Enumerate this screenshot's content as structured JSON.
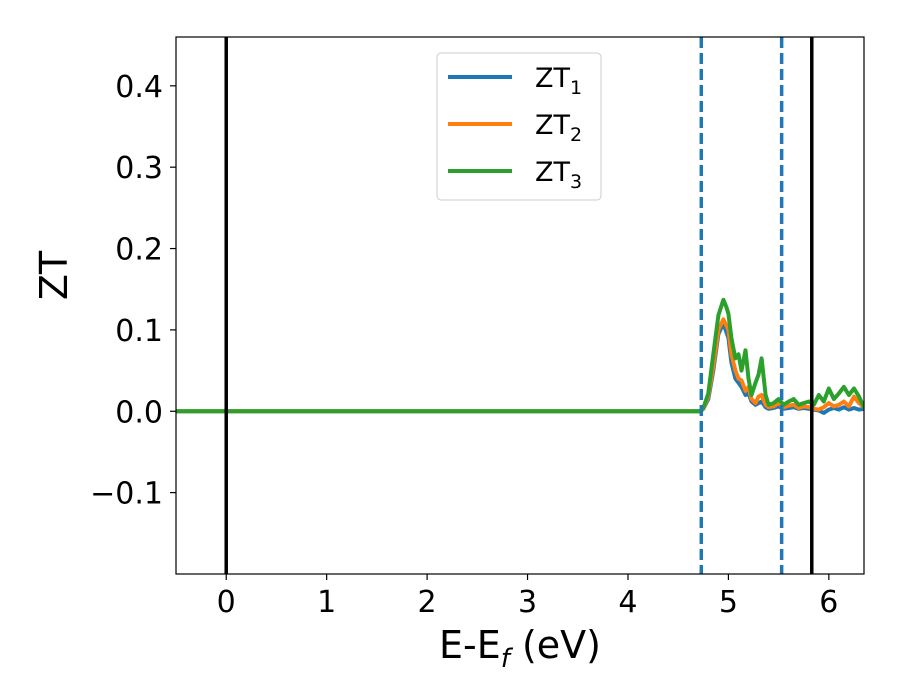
{
  "chart_data": {
    "type": "line",
    "title": "",
    "xlabel": "E-E",
    "xlabel_sub": "f",
    "xlabel_unit": " (eV)",
    "ylabel": "ZT",
    "xlim": [
      -0.5,
      6.35
    ],
    "ylim": [
      -0.2,
      0.46
    ],
    "x_ticks": [
      0,
      1,
      2,
      3,
      4,
      5,
      6
    ],
    "x_tick_labels": [
      "0",
      "1",
      "2",
      "3",
      "4",
      "5",
      "6"
    ],
    "y_ticks": [
      -0.1,
      0.0,
      0.1,
      0.2,
      0.3,
      0.4
    ],
    "y_tick_labels": [
      "−0.1",
      "0.0",
      "0.1",
      "0.2",
      "0.3",
      "0.4"
    ],
    "grid": false,
    "legend_position": "top-center",
    "vertical_lines": [
      {
        "x": 0.0,
        "style": "solid",
        "color": "#000000"
      },
      {
        "x": 5.83,
        "style": "solid",
        "color": "#000000"
      },
      {
        "x": 4.73,
        "style": "dashed",
        "color": "#1f77b4"
      },
      {
        "x": 5.53,
        "style": "dashed",
        "color": "#1f77b4"
      }
    ],
    "series": [
      {
        "name": "ZT",
        "name_sub": "1",
        "color": "#1f77b4",
        "x": [
          -0.5,
          4.72,
          4.75,
          4.8,
          4.85,
          4.9,
          4.95,
          5.0,
          5.03,
          5.07,
          5.1,
          5.13,
          5.17,
          5.2,
          5.23,
          5.27,
          5.3,
          5.33,
          5.37,
          5.4,
          5.45,
          5.5,
          5.55,
          5.6,
          5.65,
          5.7,
          5.75,
          5.8,
          5.85,
          5.9,
          5.95,
          6.0,
          6.05,
          6.1,
          6.15,
          6.2,
          6.25,
          6.3,
          6.35
        ],
        "y": [
          0.0,
          0.0,
          0.003,
          0.015,
          0.05,
          0.095,
          0.108,
          0.09,
          0.06,
          0.04,
          0.035,
          0.03,
          0.02,
          0.022,
          0.012,
          0.008,
          0.01,
          0.012,
          0.005,
          0.003,
          0.004,
          0.006,
          0.003,
          0.004,
          0.005,
          0.003,
          0.004,
          0.003,
          0.002,
          0.001,
          -0.002,
          0.002,
          0.004,
          0.002,
          0.005,
          0.002,
          0.004,
          0.002,
          0.003
        ]
      },
      {
        "name": "ZT",
        "name_sub": "2",
        "color": "#ff7f0e",
        "x": [
          -0.5,
          4.72,
          4.75,
          4.8,
          4.85,
          4.9,
          4.95,
          5.0,
          5.03,
          5.07,
          5.1,
          5.13,
          5.17,
          5.2,
          5.23,
          5.27,
          5.3,
          5.33,
          5.37,
          5.4,
          5.45,
          5.5,
          5.55,
          5.6,
          5.65,
          5.7,
          5.75,
          5.8,
          5.85,
          5.9,
          5.95,
          6.0,
          6.05,
          6.1,
          6.15,
          6.2,
          6.25,
          6.3,
          6.35
        ],
        "y": [
          0.0,
          0.0,
          0.003,
          0.018,
          0.055,
          0.1,
          0.113,
          0.1,
          0.07,
          0.05,
          0.04,
          0.038,
          0.025,
          0.03,
          0.015,
          0.01,
          0.018,
          0.02,
          0.008,
          0.005,
          0.006,
          0.01,
          0.005,
          0.007,
          0.008,
          0.004,
          0.006,
          0.005,
          0.003,
          0.002,
          0.005,
          0.01,
          0.006,
          0.008,
          0.012,
          0.006,
          0.018,
          0.01,
          0.005
        ]
      },
      {
        "name": "ZT",
        "name_sub": "3",
        "color": "#2ca02c",
        "x": [
          -0.5,
          4.72,
          4.75,
          4.8,
          4.85,
          4.9,
          4.95,
          4.98,
          5.0,
          5.03,
          5.07,
          5.1,
          5.13,
          5.17,
          5.2,
          5.23,
          5.27,
          5.3,
          5.33,
          5.37,
          5.4,
          5.45,
          5.5,
          5.55,
          5.6,
          5.65,
          5.7,
          5.75,
          5.8,
          5.85,
          5.9,
          5.95,
          6.0,
          6.05,
          6.1,
          6.15,
          6.2,
          6.25,
          6.3,
          6.35
        ],
        "y": [
          0.0,
          0.0,
          0.004,
          0.022,
          0.07,
          0.118,
          0.137,
          0.128,
          0.12,
          0.09,
          0.065,
          0.07,
          0.05,
          0.075,
          0.04,
          0.02,
          0.035,
          0.045,
          0.065,
          0.02,
          0.008,
          0.01,
          0.015,
          0.008,
          0.012,
          0.015,
          0.008,
          0.01,
          0.012,
          0.008,
          0.02,
          0.012,
          0.028,
          0.015,
          0.022,
          0.03,
          0.02,
          0.028,
          0.018,
          0.005
        ]
      }
    ]
  }
}
